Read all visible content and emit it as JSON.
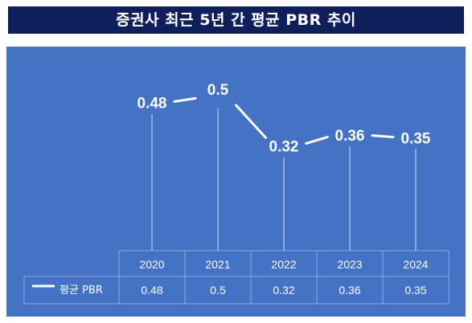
{
  "title": "증권사 최근 5년 간 평균 PBR 추이",
  "chart_data": {
    "type": "line",
    "title": "증권사 최근 5년 간 평균 PBR 추이",
    "categories": [
      "2020",
      "2021",
      "2022",
      "2023",
      "2024"
    ],
    "series": [
      {
        "name": "평균 PBR",
        "values": [
          0.48,
          0.5,
          0.32,
          0.36,
          0.35
        ],
        "color": "#ffffff"
      }
    ],
    "ylim": [
      0,
      0.6
    ],
    "data_table": true,
    "drop_lines": true,
    "background": "#4472c4"
  },
  "colors": {
    "title_bar": "#0f1f5c",
    "plot_background": "#4472c4",
    "line": "#ffffff"
  }
}
